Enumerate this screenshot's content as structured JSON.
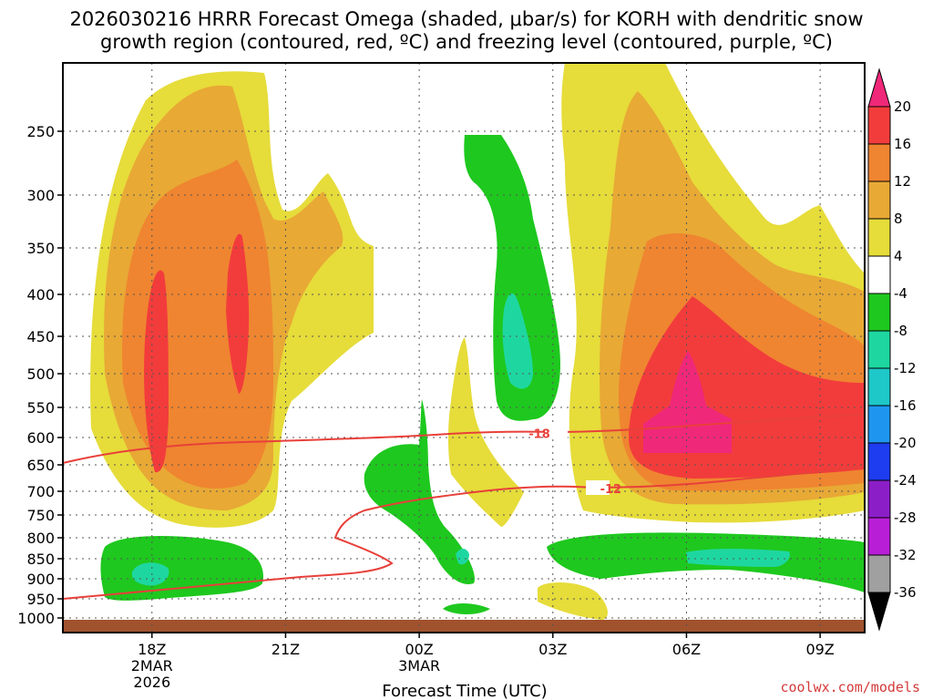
{
  "title_line1": "2026030216 HRRR Forecast Omega (shaded, μbar/s) for KORH with dendritic snow",
  "title_line2": "growth region (contoured, red, ºC) and freezing level (contoured, purple, ºC)",
  "credit": "coolwx.com/models",
  "chart_data": {
    "type": "time-height cross section (filled contours)",
    "xlabel": "Forecast Time (UTC)",
    "ylabel": "",
    "x_ticks": [
      {
        "label": "18Z",
        "sub": [
          "2MAR",
          "2026"
        ],
        "hour": 18
      },
      {
        "label": "21Z",
        "sub": [],
        "hour": 21
      },
      {
        "label": "00Z",
        "sub": [
          "3MAR"
        ],
        "hour": 24
      },
      {
        "label": "03Z",
        "sub": [],
        "hour": 27
      },
      {
        "label": "06Z",
        "sub": [],
        "hour": 30
      },
      {
        "label": "09Z",
        "sub": [],
        "hour": 33
      }
    ],
    "x_range_hours": [
      16,
      34
    ],
    "y_ticks": [
      {
        "label": "250",
        "p": 250
      },
      {
        "label": "300",
        "p": 300
      },
      {
        "label": "350",
        "p": 350
      },
      {
        "label": "400",
        "p": 400
      },
      {
        "label": "450",
        "p": 450
      },
      {
        "label": "500",
        "p": 500
      },
      {
        "label": "550",
        "p": 550
      },
      {
        "label": "600",
        "p": 600
      },
      {
        "label": "650",
        "p": 650
      },
      {
        "label": "700",
        "p": 700
      },
      {
        "label": "750",
        "p": 750
      },
      {
        "label": "800",
        "p": 800
      },
      {
        "label": "850",
        "p": 850
      },
      {
        "label": "900",
        "p": 900
      },
      {
        "label": "950",
        "p": 950
      },
      {
        "label": "1000",
        "p": 1000
      }
    ],
    "colorbar": {
      "labels": [
        "20",
        "16",
        "12",
        "8",
        "4",
        "-4",
        "-8",
        "-12",
        "-16",
        "-20",
        "-24",
        "-28",
        "-32",
        "-36"
      ],
      "colors": [
        "#f0287a",
        "#f23c3c",
        "#ef8530",
        "#e8a935",
        "#e6dc3a",
        "#ffffff",
        "#1ec81e",
        "#1ed7a0",
        "#1ec8c8",
        "#1e96f0",
        "#1e3cf0",
        "#8c1ec8",
        "#b91ed7",
        "#a0a0a0",
        "#000000"
      ]
    },
    "contour_labels": [
      {
        "text": "-18",
        "hour": 26.7,
        "p": 593
      },
      {
        "text": "-12",
        "hour": 28.3,
        "p": 695
      }
    ],
    "ground_color": "#a0522d"
  }
}
